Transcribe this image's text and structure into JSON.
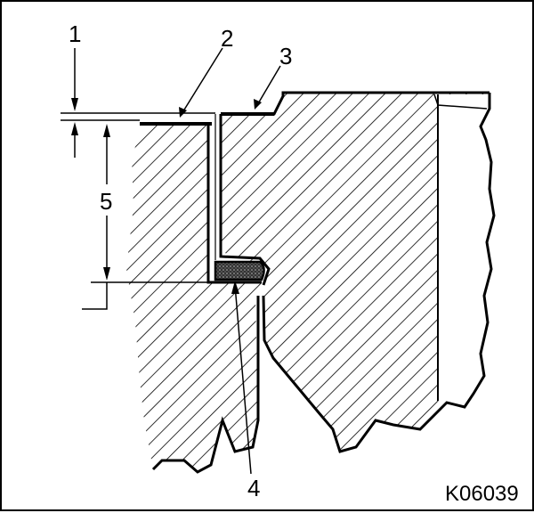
{
  "figure": {
    "callouts": {
      "c1": "1",
      "c2": "2",
      "c3": "3",
      "c4": "4",
      "c5": "5"
    },
    "figure_code": "K06039"
  },
  "colors": {
    "ink": "#000000",
    "paper": "#ffffff",
    "seal_fill": "#3a3a3a"
  }
}
